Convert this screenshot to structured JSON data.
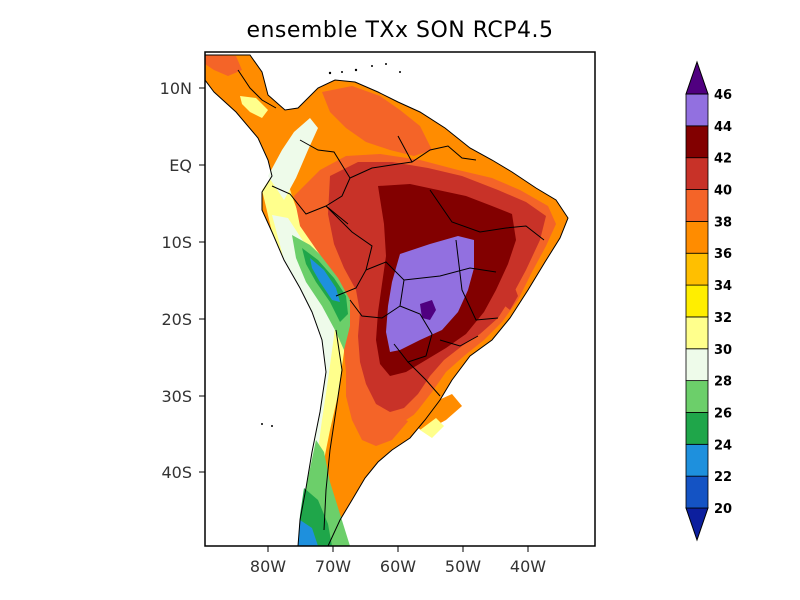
{
  "title": "ensemble TXx SON RCP4.5",
  "map": {
    "x_ticks": [
      "80W",
      "70W",
      "60W",
      "50W",
      "40W"
    ],
    "y_ticks": [
      "10N",
      "EQ",
      "10S",
      "20S",
      "30S",
      "40S"
    ]
  },
  "colorbar": {
    "levels": [
      "20",
      "22",
      "24",
      "26",
      "28",
      "30",
      "32",
      "34",
      "36",
      "38",
      "40",
      "42",
      "44",
      "46"
    ],
    "colors": [
      "#0c1f9e",
      "#1453c4",
      "#1e90dd",
      "#1fa64a",
      "#6ccf6a",
      "#eefbea",
      "#ffff8c",
      "#ffee00",
      "#ffbf00",
      "#ff8c00",
      "#f46428",
      "#c83228",
      "#820000",
      "#9270e0",
      "#500080"
    ],
    "under_color": "#0c1f9e",
    "over_color": "#500080"
  }
}
